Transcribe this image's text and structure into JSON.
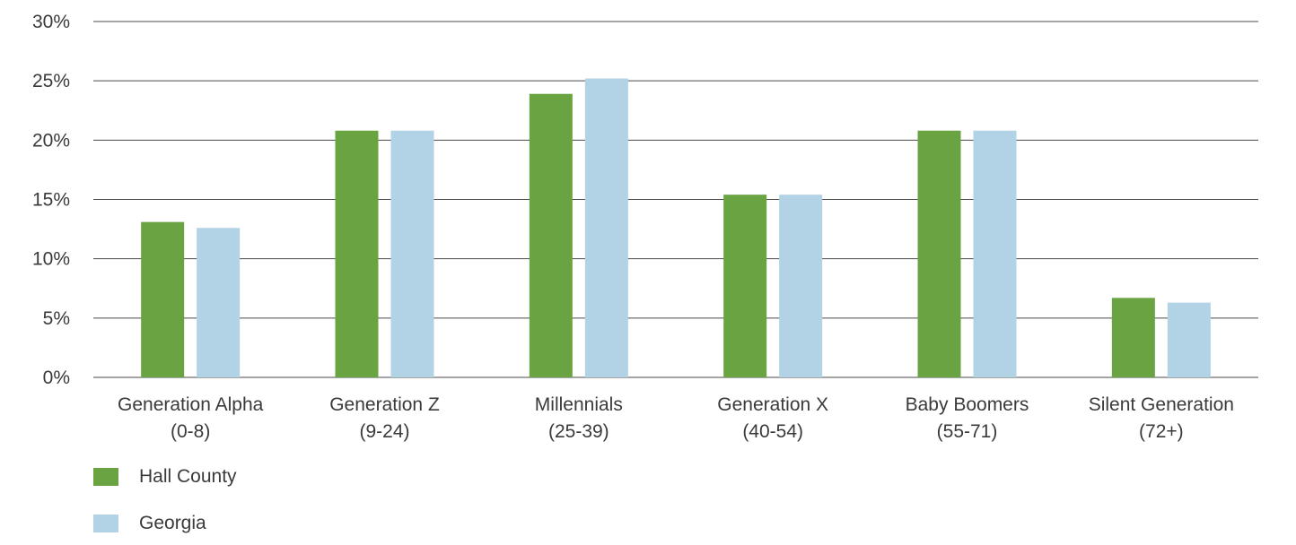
{
  "chart_data": {
    "type": "bar",
    "title": "",
    "xlabel": "",
    "ylabel": "",
    "categories": [
      [
        "Generation Alpha",
        "(0-8)"
      ],
      [
        "Generation Z",
        "(9-24)"
      ],
      [
        "Millennials",
        "(25-39)"
      ],
      [
        "Generation X",
        "(40-54)"
      ],
      [
        "Baby Boomers",
        "(55-71)"
      ],
      [
        "Silent Generation",
        "(72+)"
      ]
    ],
    "series": [
      {
        "name": "Hall County",
        "color": "#6aa342",
        "values": [
          13.1,
          20.8,
          23.9,
          15.4,
          20.8,
          6.7
        ]
      },
      {
        "name": "Georgia",
        "color": "#b2d2e5",
        "values": [
          12.6,
          20.8,
          25.2,
          15.4,
          20.8,
          6.3
        ]
      }
    ],
    "ylim": [
      0,
      30
    ],
    "yticks": [
      0,
      5,
      10,
      15,
      20,
      25,
      30
    ],
    "ytick_labels": [
      "0%",
      "5%",
      "10%",
      "15%",
      "20%",
      "25%",
      "30%"
    ],
    "grid": true,
    "legend_position": "bottom-left"
  }
}
